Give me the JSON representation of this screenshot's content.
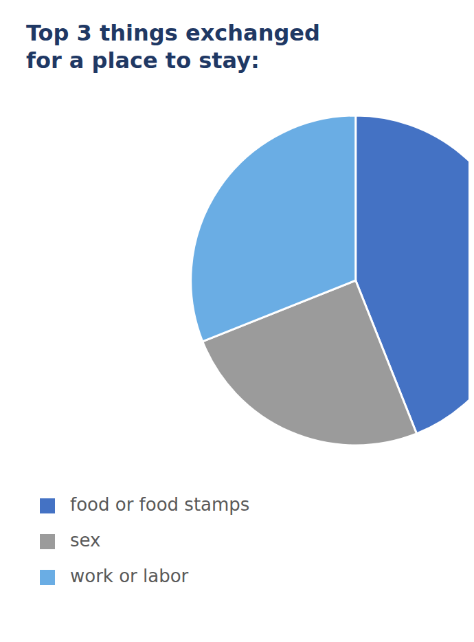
{
  "chart_data": {
    "type": "pie",
    "title": "Top 3 things exchanged",
    "subtitle": "for a place to stay:",
    "categories": [
      "food or food stamps",
      "sex",
      "work or labor"
    ],
    "values": [
      51,
      29,
      36
    ],
    "colors": [
      "#4472C4",
      "#9B9B9B",
      "#6AADE4"
    ],
    "legend": "bottom"
  }
}
